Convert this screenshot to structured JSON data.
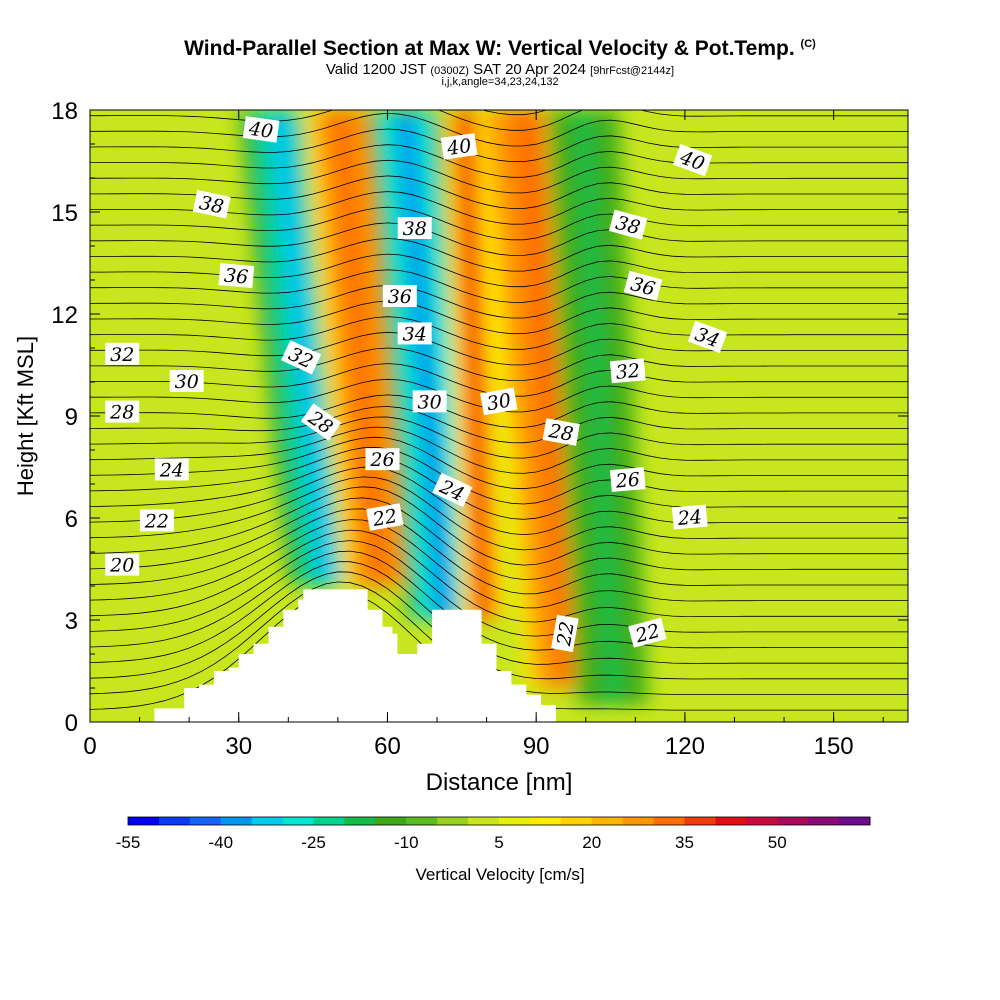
{
  "title": "Wind-Parallel Section at Max W: Vertical Velocity & Pot.Temp.",
  "title_tag": "(C)",
  "subtitle_valid": "Valid 1200 JST",
  "subtitle_utc": "(0300Z)",
  "subtitle_date": "SAT 20 Apr 2024",
  "subtitle_fcst": "[9hrFcst@2144z]",
  "params": "i,j,k,angle=34,23,24,132",
  "chart_data": {
    "type": "heatmap",
    "xlabel": "Distance [nm]",
    "ylabel": "Height [Kft MSL]",
    "xlim": [
      0,
      165
    ],
    "ylim": [
      0,
      18
    ],
    "x_ticks": [
      0,
      30,
      60,
      90,
      120,
      150
    ],
    "y_ticks": [
      0,
      3,
      6,
      9,
      12,
      15,
      18
    ],
    "colorbar": {
      "label": "Vertical Velocity [cm/s]",
      "tick_labels": [
        "-55",
        "-40",
        "-25",
        "-10",
        "5",
        "20",
        "35",
        "50"
      ],
      "tick_values": [
        -55,
        -40,
        -25,
        -10,
        5,
        20,
        35,
        50
      ],
      "min": -55,
      "max": 60,
      "step": 5,
      "colors": [
        "#0000f0",
        "#0a3cf5",
        "#1464fa",
        "#0096f0",
        "#00c8f0",
        "#00e6d2",
        "#00d28c",
        "#14be46",
        "#3caa14",
        "#5abe1e",
        "#96d21e",
        "#c8e61e",
        "#e6f00a",
        "#ffeb00",
        "#ffd200",
        "#ffb400",
        "#ff9600",
        "#ff6e00",
        "#f03c0a",
        "#e10f14",
        "#c80a3c",
        "#aa0a5a",
        "#8c0a78",
        "#6e0a8c"
      ]
    },
    "isentropes": {
      "name": "Pot.Temp.",
      "labeled_levels": [
        "20",
        "22",
        "24",
        "26",
        "28",
        "30",
        "32",
        "34",
        "36",
        "38",
        "40"
      ],
      "contour_labels": [
        {
          "text": "20",
          "x": 6.5,
          "y": 4.6,
          "angle": 0
        },
        {
          "text": "22",
          "x": 13.5,
          "y": 5.9,
          "angle": 0
        },
        {
          "text": "24",
          "x": 16.5,
          "y": 7.4,
          "angle": 0
        },
        {
          "text": "28",
          "x": 6.5,
          "y": 9.1,
          "angle": 0
        },
        {
          "text": "30",
          "x": 19.5,
          "y": 10.0,
          "angle": 0
        },
        {
          "text": "32",
          "x": 6.5,
          "y": 10.8,
          "angle": 0
        },
        {
          "text": "36",
          "x": 29.5,
          "y": 13.1,
          "angle": 5
        },
        {
          "text": "38",
          "x": 24.5,
          "y": 15.2,
          "angle": 12
        },
        {
          "text": "40",
          "x": 34.5,
          "y": 17.4,
          "angle": 8
        },
        {
          "text": "32",
          "x": 42.5,
          "y": 10.7,
          "angle": 25
        },
        {
          "text": "28",
          "x": 46.5,
          "y": 8.8,
          "angle": 35
        },
        {
          "text": "26",
          "x": 59.0,
          "y": 7.7,
          "angle": 0
        },
        {
          "text": "22",
          "x": 59.5,
          "y": 6.0,
          "angle": -10
        },
        {
          "text": "24",
          "x": 73.0,
          "y": 6.8,
          "angle": 25
        },
        {
          "text": "30",
          "x": 68.5,
          "y": 9.4,
          "angle": 0
        },
        {
          "text": "34",
          "x": 65.5,
          "y": 11.4,
          "angle": 0
        },
        {
          "text": "36",
          "x": 62.5,
          "y": 12.5,
          "angle": 0
        },
        {
          "text": "38",
          "x": 65.5,
          "y": 14.5,
          "angle": 0
        },
        {
          "text": "40",
          "x": 74.5,
          "y": 16.9,
          "angle": -8
        },
        {
          "text": "30",
          "x": 82.5,
          "y": 9.4,
          "angle": -10
        },
        {
          "text": "28",
          "x": 95.0,
          "y": 8.5,
          "angle": 10
        },
        {
          "text": "32",
          "x": 108.5,
          "y": 10.3,
          "angle": -5
        },
        {
          "text": "26",
          "x": 108.5,
          "y": 7.1,
          "angle": -5
        },
        {
          "text": "22",
          "x": 96.0,
          "y": 2.6,
          "angle": -80
        },
        {
          "text": "22",
          "x": 112.5,
          "y": 2.6,
          "angle": -15
        },
        {
          "text": "24",
          "x": 121.0,
          "y": 6.0,
          "angle": -5
        },
        {
          "text": "38",
          "x": 108.5,
          "y": 14.6,
          "angle": 15
        },
        {
          "text": "36",
          "x": 111.5,
          "y": 12.8,
          "angle": 15
        },
        {
          "text": "34",
          "x": 124.5,
          "y": 11.3,
          "angle": 20
        },
        {
          "text": "40",
          "x": 121.5,
          "y": 16.5,
          "angle": 20
        }
      ]
    },
    "vertical_velocity_bands": [
      {
        "x0": 42,
        "x1": 54,
        "y0": 4,
        "y1": 18,
        "lean": -10,
        "value": -25
      },
      {
        "x0": 53,
        "x1": 64,
        "y0": 4,
        "y1": 18,
        "lean": -8,
        "value": 25
      },
      {
        "x0": 66,
        "x1": 77,
        "y0": 3,
        "y1": 18,
        "lean": -8,
        "value": -30
      },
      {
        "x0": 77,
        "x1": 82,
        "y0": 3,
        "y1": 18,
        "lean": -4,
        "value": 30
      },
      {
        "x0": 90,
        "x1": 105,
        "y0": 1,
        "y1": 18,
        "lean": -10,
        "value": 25
      },
      {
        "x0": 100,
        "x1": 111,
        "y0": 0.5,
        "y1": 18,
        "lean": -6,
        "value": -15
      }
    ],
    "terrain": [
      [
        0,
        0
      ],
      [
        10,
        0
      ],
      [
        13,
        0.4
      ],
      [
        16,
        0.4
      ],
      [
        19,
        1.0
      ],
      [
        22,
        1.1
      ],
      [
        25,
        1.5
      ],
      [
        28,
        1.6
      ],
      [
        30,
        2.0
      ],
      [
        33,
        2.3
      ],
      [
        36,
        2.8
      ],
      [
        39,
        3.3
      ],
      [
        42,
        3.6
      ],
      [
        43,
        3.9
      ],
      [
        49,
        3.9
      ],
      [
        55,
        3.9
      ],
      [
        56,
        3.3
      ],
      [
        59,
        2.8
      ],
      [
        61,
        2.6
      ],
      [
        62,
        2.0
      ],
      [
        65,
        2.0
      ],
      [
        66,
        2.3
      ],
      [
        68,
        2.3
      ],
      [
        69,
        3.3
      ],
      [
        72,
        3.3
      ],
      [
        78,
        3.3
      ],
      [
        79,
        2.3
      ],
      [
        82,
        1.5
      ],
      [
        85,
        1.1
      ],
      [
        88,
        0.8
      ],
      [
        91,
        0.5
      ],
      [
        94,
        0.0
      ],
      [
        165,
        0
      ]
    ]
  }
}
